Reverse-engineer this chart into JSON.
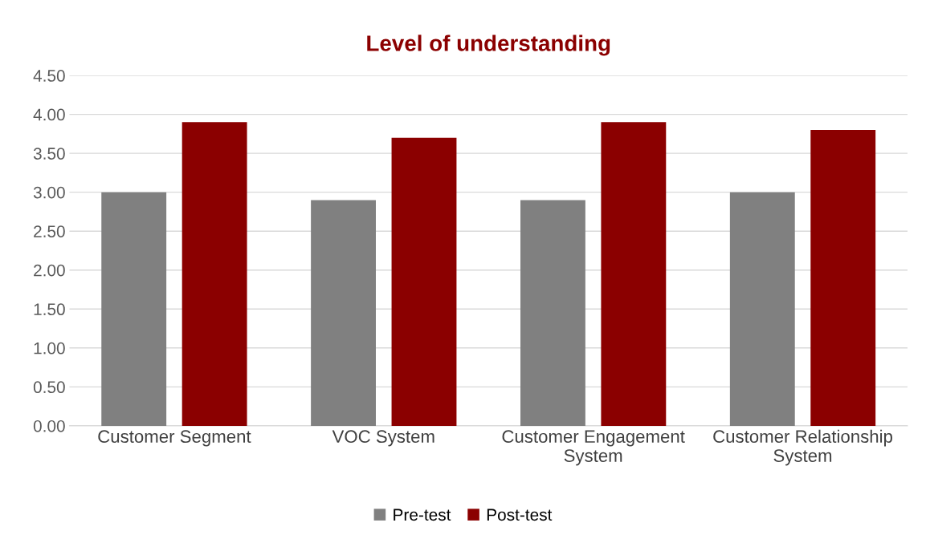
{
  "chart_data": {
    "type": "bar",
    "title": "Level of understanding",
    "categories": [
      "Customer Segment",
      "VOC System",
      "Customer Engagement\nSystem",
      "Customer Relationship\nSystem"
    ],
    "series": [
      {
        "name": "Pre-test",
        "color": "#808080",
        "values": [
          3.0,
          2.9,
          2.9,
          3.0
        ]
      },
      {
        "name": "Post-test",
        "color": "#8b0000",
        "values": [
          3.9,
          3.7,
          3.9,
          3.8
        ]
      }
    ],
    "ylim": [
      0,
      4.5
    ],
    "yticks": [
      {
        "value": 0,
        "label": "0.00"
      },
      {
        "value": 0.5,
        "label": "0.50"
      },
      {
        "value": 1,
        "label": "1.00"
      },
      {
        "value": 1.5,
        "label": "1.50"
      },
      {
        "value": 2,
        "label": "2.00"
      },
      {
        "value": 2.5,
        "label": "2.50"
      },
      {
        "value": 3,
        "label": "3.00"
      },
      {
        "value": 3.5,
        "label": "3.50"
      },
      {
        "value": 4,
        "label": "4.00"
      },
      {
        "value": 4.5,
        "label": "4.50"
      }
    ],
    "grid": "y",
    "legend": "bottom"
  }
}
